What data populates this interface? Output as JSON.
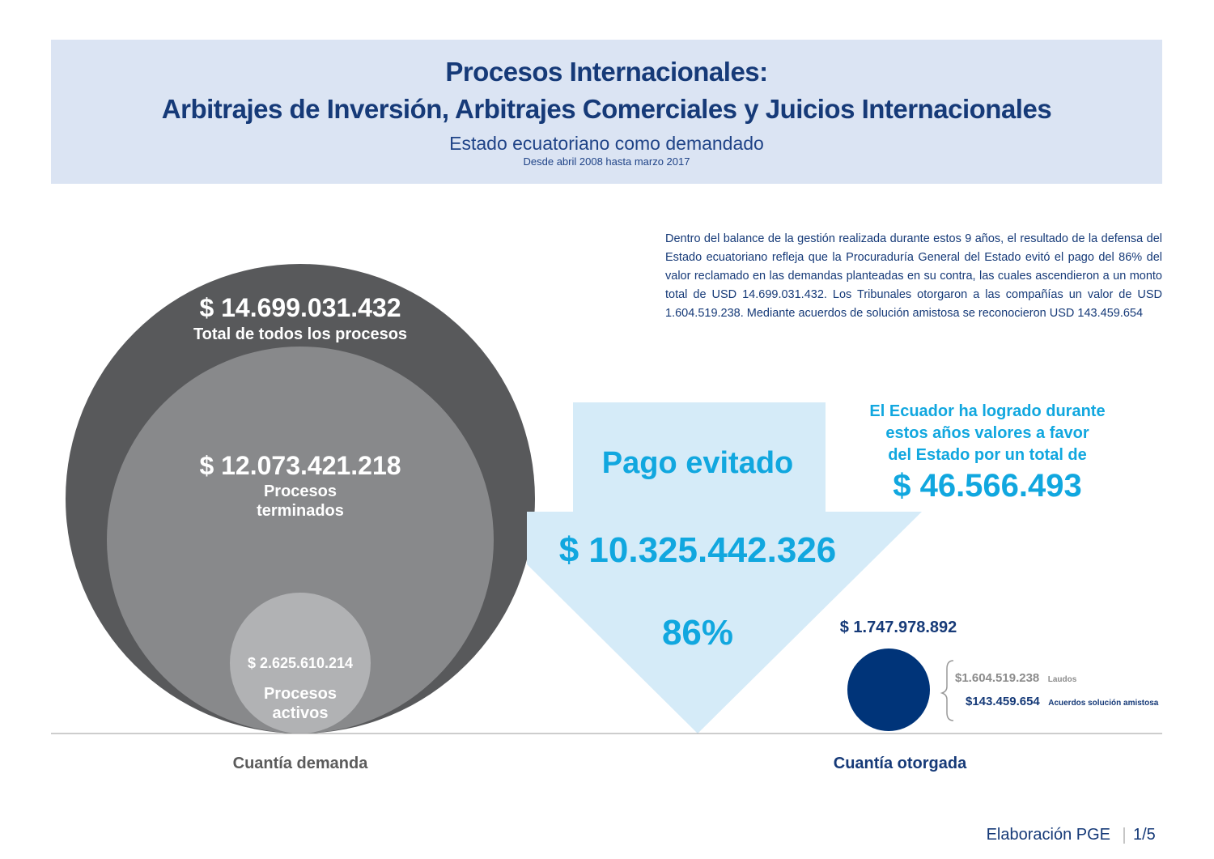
{
  "header": {
    "title_line1": "Procesos Internacionales:",
    "title_line2": "Arbitrajes de Inversión, Arbitrajes Comerciales y Juicios Internacionales",
    "subtitle": "Estado ecuatoriano como demandado",
    "period": "Desde abril 2008 hasta marzo 2017"
  },
  "summary": "Dentro del balance de la gestión realizada durante estos 9 años, el resultado de la defensa del Estado ecuatoriano refleja que la Procuraduría General del Estado evitó el pago del 86% del valor reclamado en las demandas planteadas en su contra, las cuales ascendieron a un monto total de USD 14.699.031.432. Los Tribunales otorgaron a las compañías un valor de USD 1.604.519.238. Mediante acuerdos de solución amistosa se reconocieron USD 143.459.654",
  "demand": {
    "total_value": "$ 14.699.031.432",
    "total_label": "Total de todos los procesos",
    "finished_value": "$ 12.073.421.218",
    "finished_label_line1": "Procesos",
    "finished_label_line2": "terminados",
    "active_value": "$ 2.625.610.214",
    "active_label_line1": "Procesos",
    "active_label_line2": "activos",
    "axis_label": "Cuantía demanda"
  },
  "avoided": {
    "label": "Pago evitado",
    "value": "$ 10.325.442.326",
    "percent": "86%"
  },
  "favor": {
    "line1": "El Ecuador ha logrado durante",
    "line2": "estos años valores a favor",
    "line3": "del Estado por un total de",
    "value": "$ 46.566.493"
  },
  "granted": {
    "total_value": "$ 1.747.978.892",
    "laudos_value": "$1.604.519.238",
    "laudos_label": "Laudos",
    "acuerdos_value": "$143.459.654",
    "acuerdos_label": "Acuerdos solución amistosa",
    "axis_label": "Cuantía otorgada"
  },
  "footer": {
    "source": "Elaboración PGE",
    "page": "1/5"
  },
  "colors": {
    "header_bg": "#dbe4f3",
    "navy": "#163a78",
    "cyan": "#11a7df",
    "arrow": "#d5ebf8",
    "dark_gray": "#58595b",
    "mid_gray": "#88898b",
    "light_gray": "#b1b2b4",
    "granted_circle": "#003479"
  }
}
